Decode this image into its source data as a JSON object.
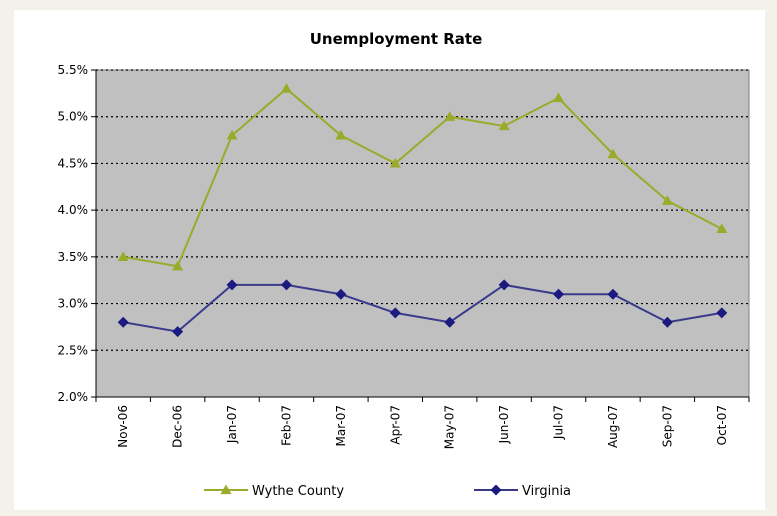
{
  "chart_data": {
    "type": "line",
    "title": "Unemployment Rate",
    "xlabel": "",
    "ylabel": "",
    "categories": [
      "Nov-06",
      "Dec-06",
      "Jan-07",
      "Feb-07",
      "Mar-07",
      "Apr-07",
      "May-07",
      "Jun-07",
      "Jul-07",
      "Aug-07",
      "Sep-07",
      "Oct-07"
    ],
    "ylim": [
      2.0,
      5.5
    ],
    "yticks": [
      2.0,
      2.5,
      3.0,
      3.5,
      4.0,
      4.5,
      5.0,
      5.5
    ],
    "ytick_labels": [
      "2.0%",
      "2.5%",
      "3.0%",
      "3.5%",
      "4.0%",
      "4.5%",
      "5.0%",
      "5.5%"
    ],
    "grid": true,
    "legend_position": "bottom",
    "plot_background": "#c0c0c0",
    "series": [
      {
        "name": "Wythe County",
        "color": "#9aaa2a",
        "marker": "triangle",
        "values": [
          3.5,
          3.4,
          4.8,
          5.3,
          4.8,
          4.5,
          5.0,
          4.9,
          5.2,
          4.6,
          4.1,
          3.8
        ]
      },
      {
        "name": "Virginia",
        "color": "#3a3a8c",
        "marker_color": "#1a1a80",
        "marker": "diamond",
        "values": [
          2.8,
          2.7,
          3.2,
          3.2,
          3.1,
          2.9,
          2.8,
          3.2,
          3.1,
          3.1,
          2.8,
          2.9
        ]
      }
    ]
  }
}
